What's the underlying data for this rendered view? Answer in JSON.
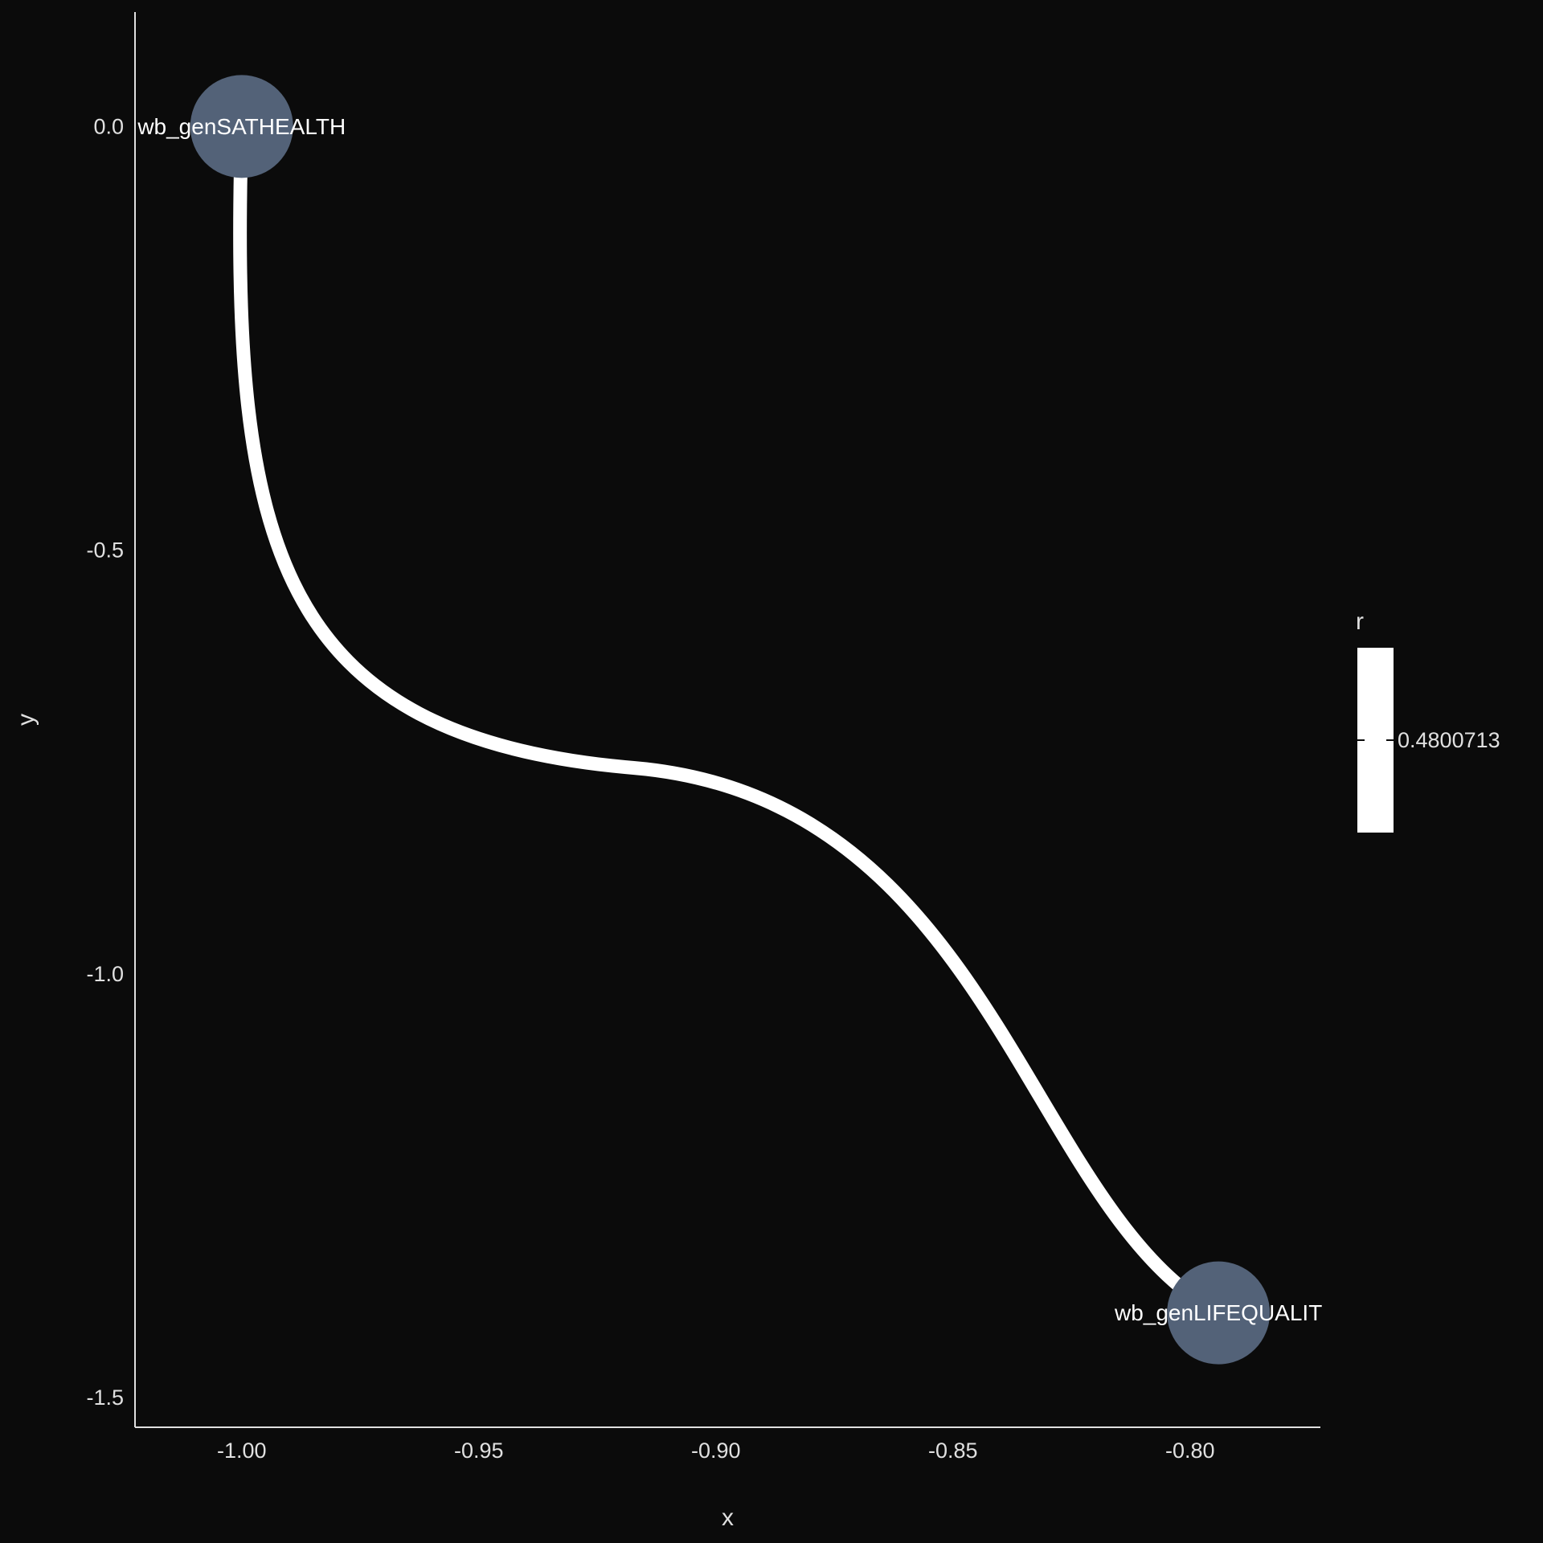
{
  "chart_data": {
    "type": "network",
    "xlabel": "x",
    "ylabel": "y",
    "xlim": [
      -1.0225,
      -0.7725
    ],
    "ylim": [
      -1.535,
      0.135
    ],
    "x_ticks": [
      -1.0,
      -0.95,
      -0.9,
      -0.85,
      -0.8
    ],
    "x_tick_labels": [
      "-1.00",
      "-0.95",
      "-0.90",
      "-0.85",
      "-0.80"
    ],
    "y_ticks": [
      0.0,
      -0.5,
      -1.0,
      -1.5
    ],
    "y_tick_labels": [
      "0.0",
      "-0.5",
      "-1.0",
      "-1.5"
    ],
    "nodes": [
      {
        "name": "wb_genSATHEALTH",
        "x": -1.0,
        "y": 0.0
      },
      {
        "name": "wb_genLIFEQUALIT",
        "x": -0.794,
        "y": -1.4
      }
    ],
    "edges": [
      {
        "from": "wb_genSATHEALTH",
        "to": "wb_genLIFEQUALIT",
        "r": 0.4800713
      }
    ],
    "legend": {
      "title": "r",
      "label": "0.4800713",
      "position": "right"
    },
    "colors": {
      "background": "#0b0b0b",
      "node": "#536278",
      "edge": "#ffffff",
      "axis": "#e0e0e0"
    },
    "grid": false
  }
}
